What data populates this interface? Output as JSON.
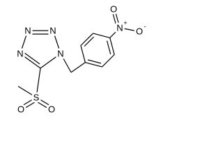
{
  "atoms": [
    {
      "symbol": "N"
    },
    {
      "symbol": "N"
    },
    {
      "symbol": "N"
    },
    {
      "symbol": "N"
    },
    {
      "symbol": "S"
    },
    {
      "symbol": "O"
    },
    {
      "symbol": "O"
    },
    {
      "symbol": "N",
      "charge": "+"
    },
    {
      "symbol": "O"
    },
    {
      "symbol": "O",
      "charge": "-"
    }
  ]
}
